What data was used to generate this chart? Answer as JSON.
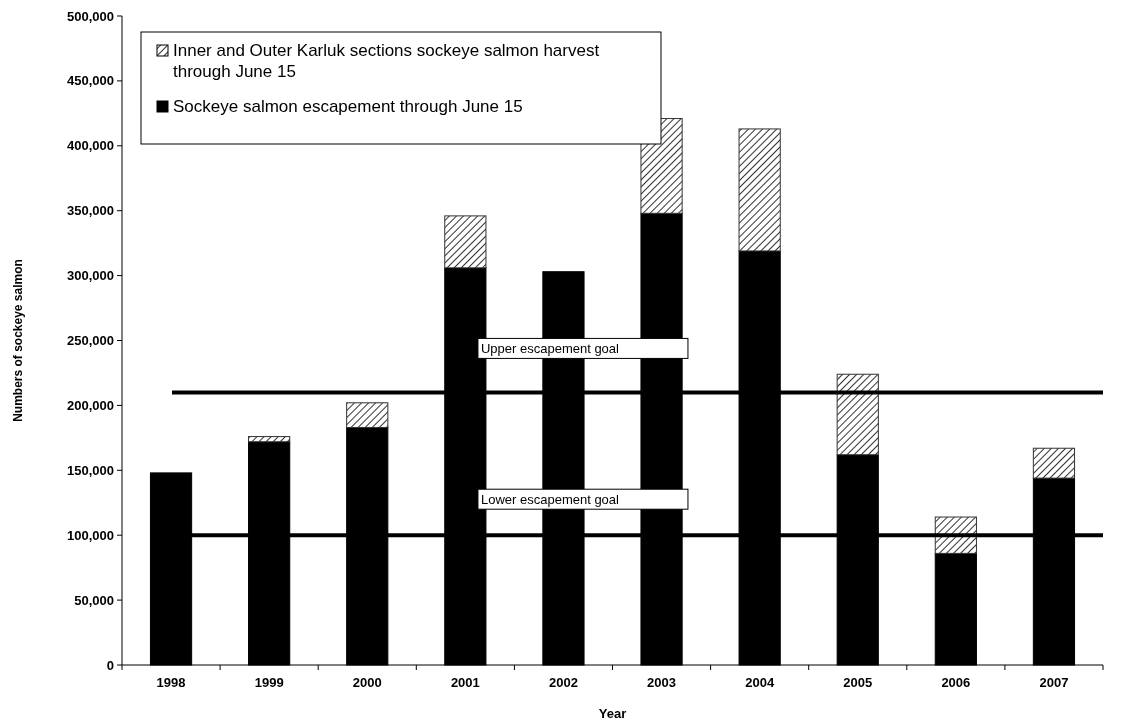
{
  "chart_data": {
    "type": "bar",
    "stacked": true,
    "xlabel": "Year",
    "ylabel": "Numbers of sockeye salmon",
    "categories": [
      "1998",
      "1999",
      "2000",
      "2001",
      "2002",
      "2003",
      "2004",
      "2005",
      "2006",
      "2007"
    ],
    "series": [
      {
        "name": "Sockeye salmon escapement through June 15",
        "color": "#000000",
        "values": [
          148000,
          172000,
          183000,
          306000,
          303000,
          348000,
          319000,
          162000,
          86000,
          144000
        ]
      },
      {
        "name": "Inner and Outer Karluk sections sockeye salmon harvest through June 15",
        "color": "#333333",
        "values": [
          null,
          4000,
          19000,
          40000,
          null,
          73000,
          94000,
          62000,
          28000,
          23000
        ]
      }
    ],
    "ylim": [
      0,
      500000
    ],
    "yticks": [
      {
        "value": 0,
        "label": "0"
      },
      {
        "value": 50000,
        "label": "50,000"
      },
      {
        "value": 100000,
        "label": "100,000"
      },
      {
        "value": 150000,
        "label": "150,000"
      },
      {
        "value": 200000,
        "label": "200,000"
      },
      {
        "value": 250000,
        "label": "250,000"
      },
      {
        "value": 300000,
        "label": "300,000"
      },
      {
        "value": 350000,
        "label": "350,000"
      },
      {
        "value": 400000,
        "label": "400,000"
      },
      {
        "value": 450000,
        "label": "450,000"
      },
      {
        "value": 500000,
        "label": "500,000"
      }
    ],
    "ref_lines": [
      {
        "axis": "y",
        "value": 210000,
        "label": "Upper escapement goal",
        "color": "#000000"
      },
      {
        "axis": "y",
        "value": 100000,
        "label": "Lower escapement goal",
        "color": "#000000"
      }
    ],
    "legend": "top left",
    "grid": false
  }
}
